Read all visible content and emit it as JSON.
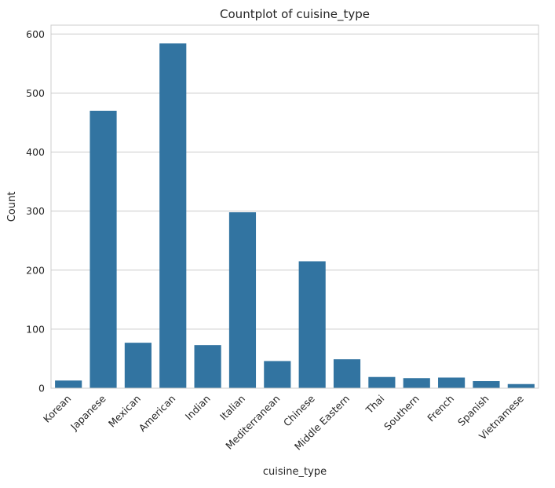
{
  "chart_data": {
    "type": "bar",
    "title": "Countplot of cuisine_type",
    "xlabel": "cuisine_type",
    "ylabel": "Count",
    "categories": [
      "Korean",
      "Japanese",
      "Mexican",
      "American",
      "Indian",
      "Italian",
      "Mediterranean",
      "Chinese",
      "Middle Eastern",
      "Thai",
      "Southern",
      "French",
      "Spanish",
      "Vietnamese"
    ],
    "values": [
      13,
      470,
      77,
      584,
      73,
      298,
      46,
      215,
      49,
      19,
      17,
      18,
      12,
      7
    ],
    "ylim": [
      0,
      615
    ],
    "yticks": [
      0,
      100,
      200,
      300,
      400,
      500,
      600
    ],
    "grid": "horizontal",
    "bar_color": "#3274a1",
    "grid_color": "#cccccc",
    "frame_color": "#cccccc"
  }
}
